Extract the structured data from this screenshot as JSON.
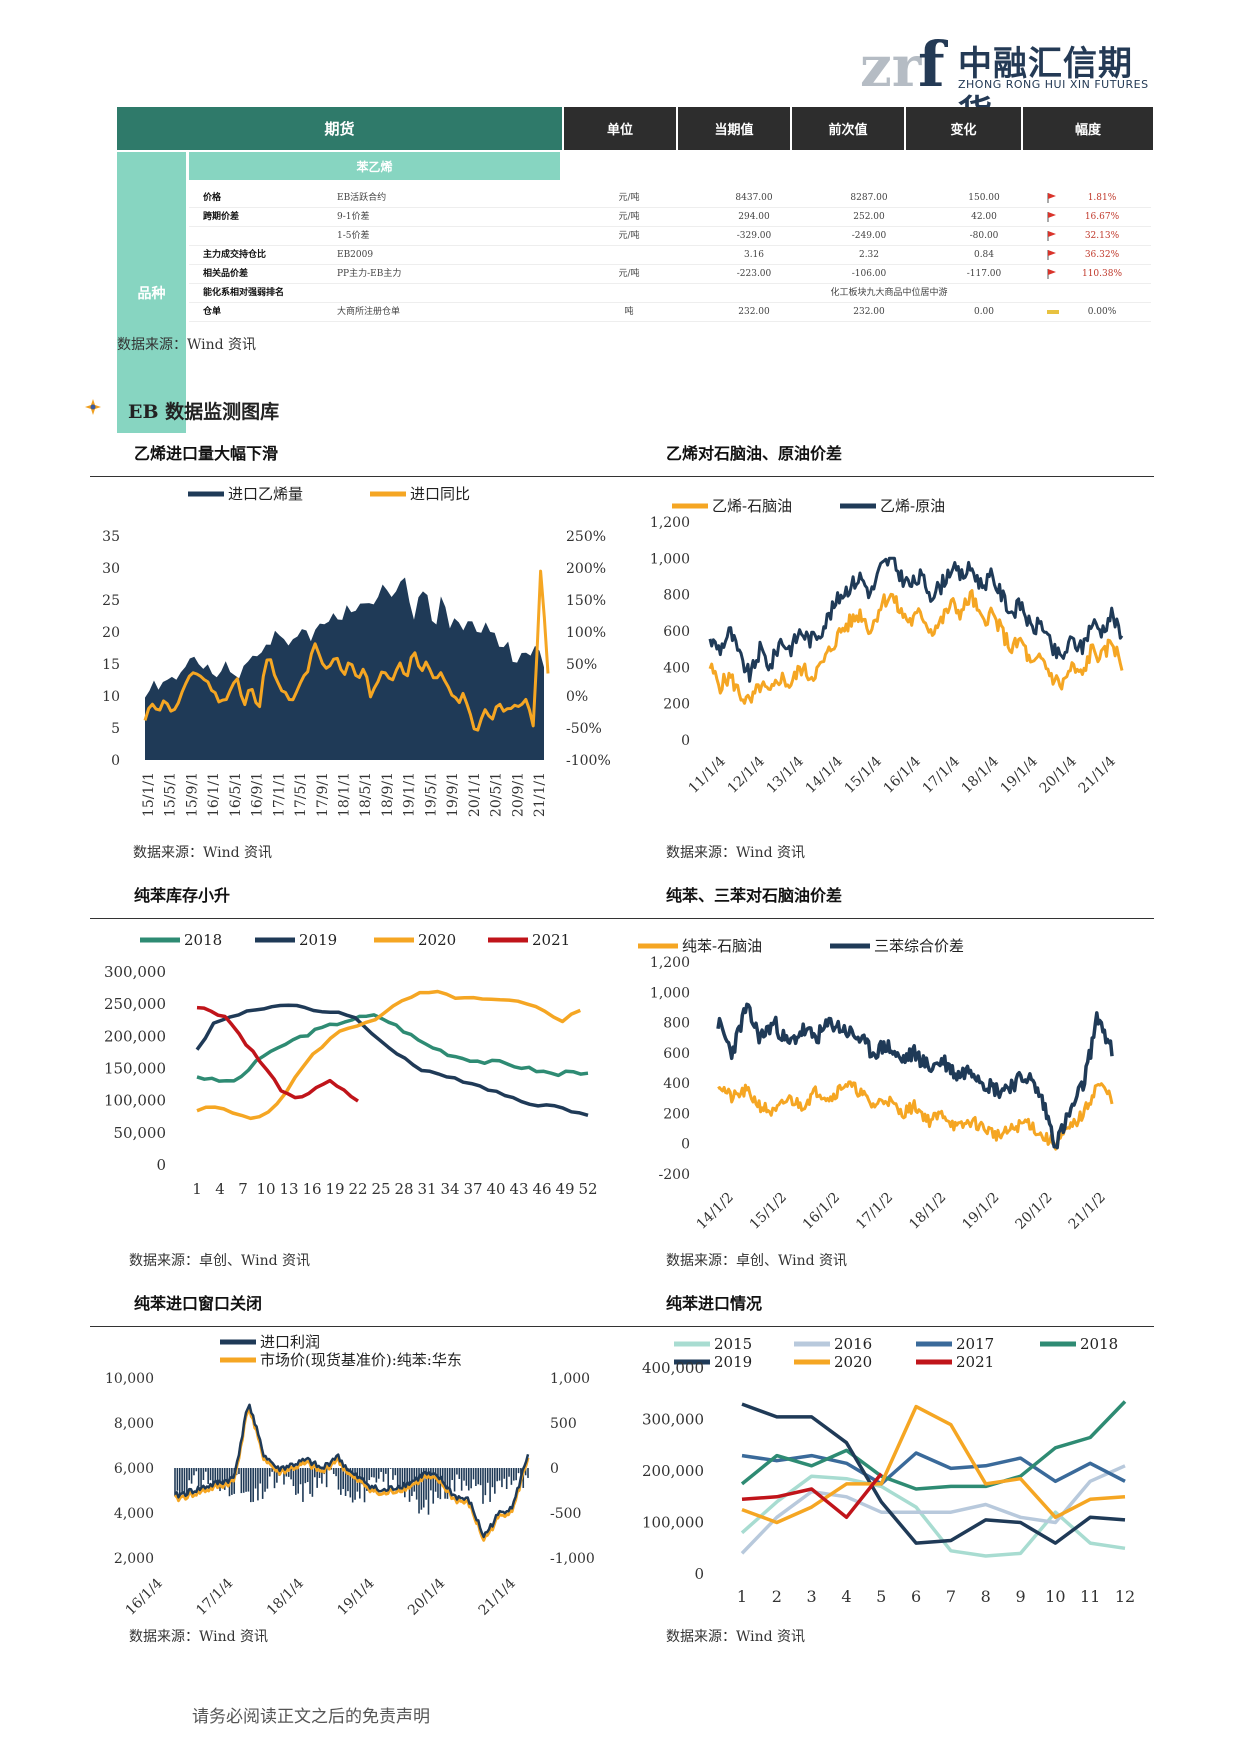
{
  "header": {
    "logo_mark": "zrf",
    "company_cn": "中融汇信期货",
    "company_en": "ZHONG RONG HUI XIN FUTURES"
  },
  "table": {
    "headers": {
      "futures": "期货",
      "unit": "单位",
      "current": "当期值",
      "previous": "前次值",
      "change": "变化",
      "pct": "幅度"
    },
    "side_label": "品种",
    "sub_label": "苯乙烯",
    "rows": [
      {
        "name": "价格",
        "item": "EB活跃合约",
        "unit": "元/吨",
        "current": "8437.00",
        "previous": "8287.00",
        "change": "150.00",
        "pct": "1.81%",
        "flag": "red"
      },
      {
        "name": "跨期价差",
        "item": "9-1价差",
        "unit": "元/吨",
        "current": "294.00",
        "previous": "252.00",
        "change": "42.00",
        "pct": "16.67%",
        "flag": "red"
      },
      {
        "name": "",
        "item": "1-5价差",
        "unit": "元/吨",
        "current": "-329.00",
        "previous": "-249.00",
        "change": "-80.00",
        "pct": "32.13%",
        "flag": "red"
      },
      {
        "name": "主力成交持仓比",
        "item": "EB2009",
        "unit": "",
        "current": "3.16",
        "previous": "2.32",
        "change": "0.84",
        "pct": "36.32%",
        "flag": "red"
      },
      {
        "name": "相关品价差",
        "item": "PP主力-EB主力",
        "unit": "元/吨",
        "current": "-223.00",
        "previous": "-106.00",
        "change": "-117.00",
        "pct": "110.38%",
        "flag": "red"
      },
      {
        "name": "能化系相对强弱排名",
        "item": "",
        "unit": "",
        "note": "化工板块九大商品中位居中游"
      },
      {
        "name": "仓单",
        "item": "大商所注册仓单",
        "unit": "吨",
        "current": "232.00",
        "previous": "232.00",
        "change": "0.00",
        "pct": "0.00%",
        "flag": "yellow"
      }
    ],
    "source": "数据来源：Wind 资讯"
  },
  "section": {
    "title": "EB 数据监测图库"
  },
  "charts": {
    "c1": {
      "title": "乙烯进口量大幅下滑",
      "source": "数据来源：Wind 资讯",
      "legend": [
        "进口乙烯量",
        "进口同比"
      ]
    },
    "c2": {
      "title": "乙烯对石脑油、原油价差",
      "source": "数据来源：Wind 资讯",
      "legend": [
        "乙烯-石脑油",
        "乙烯-原油"
      ]
    },
    "c3": {
      "title": "纯苯库存小升",
      "source": "数据来源：卓创、Wind 资讯",
      "legend": [
        "2018",
        "2019",
        "2020",
        "2021"
      ]
    },
    "c4": {
      "title": "纯苯、三苯对石脑油价差",
      "source": "数据来源：卓创、Wind 资讯",
      "legend": [
        "纯苯-石脑油",
        "三苯综合价差"
      ]
    },
    "c5": {
      "title": "纯苯进口窗口关闭",
      "source": "数据来源：Wind 资讯",
      "legend": [
        "进口利润",
        "市场价(现货基准价):纯苯:华东"
      ]
    },
    "c6": {
      "title": "纯苯进口情况",
      "source": "数据来源：Wind 资讯",
      "legend": [
        "2015",
        "2016",
        "2017",
        "2018",
        "2019",
        "2020",
        "2021"
      ]
    }
  },
  "colors": {
    "navy": "#1f3a57",
    "orange": "#f5a623",
    "teal": "#2e8b73",
    "red": "#c0141a",
    "light_teal": "#a8dcd1",
    "light_blue": "#b8c9dc",
    "mid_blue": "#3a6a9a"
  },
  "chart_data": [
    {
      "type": "area+line",
      "title": "乙烯进口量大幅下滑",
      "x_ticks": [
        "15/1/1",
        "15/5/1",
        "15/9/1",
        "16/1/1",
        "16/5/1",
        "16/9/1",
        "17/1/1",
        "17/5/1",
        "17/9/1",
        "18/1/1",
        "18/5/1",
        "18/9/1",
        "19/1/1",
        "19/5/1",
        "19/9/1",
        "20/1/1",
        "20/5/1",
        "20/9/1",
        "21/1/1"
      ],
      "y_left_ticks": [
        "0",
        "5",
        "10",
        "15",
        "20",
        "25",
        "30",
        "35"
      ],
      "y_right_ticks": [
        "-100%",
        "-50%",
        "0%",
        "50%",
        "100%",
        "150%",
        "200%",
        "250%"
      ],
      "ylim_left": [
        0,
        35
      ],
      "ylim_right": [
        -100,
        250
      ],
      "series": [
        {
          "name": "进口乙烯量",
          "values": [
            10,
            12,
            11,
            13,
            12,
            14,
            15,
            16,
            14,
            15,
            12,
            15,
            14,
            13,
            15,
            16,
            17,
            18,
            20,
            19,
            18,
            20,
            21,
            19,
            22,
            20,
            23,
            22,
            24,
            23,
            25,
            24,
            26,
            27,
            25,
            27,
            28,
            22,
            26,
            25,
            20,
            27,
            21,
            23,
            20,
            22,
            19,
            21,
            20,
            17,
            18,
            15,
            17,
            16,
            18,
            14
          ]
        },
        {
          "name": "进口同比",
          "values": [
            -40,
            -10,
            -20,
            -5,
            -30,
            0,
            20,
            40,
            30,
            20,
            0,
            -10,
            10,
            30,
            -20,
            20,
            -30,
            60,
            50,
            10,
            0,
            -10,
            20,
            40,
            80,
            50,
            40,
            70,
            30,
            60,
            20,
            50,
            -10,
            30,
            40,
            20,
            60,
            20,
            80,
            40,
            50,
            20,
            40,
            10,
            -10,
            0,
            -30,
            -60,
            -20,
            -40,
            -10,
            -30,
            -10,
            -20,
            0,
            -50,
            210,
            40
          ]
        }
      ]
    },
    {
      "type": "line",
      "title": "乙烯对石脑油、原油价差",
      "x_ticks": [
        "11/1/4",
        "12/1/4",
        "13/1/4",
        "14/1/4",
        "15/1/4",
        "16/1/4",
        "17/1/4",
        "18/1/4",
        "19/1/4",
        "20/1/4",
        "21/1/4"
      ],
      "y_ticks": [
        "0",
        "200",
        "400",
        "600",
        "800",
        "1,000",
        "1,200"
      ],
      "ylim": [
        0,
        1200
      ],
      "series": [
        {
          "name": "乙烯-石脑油",
          "values": [
            400,
            300,
            350,
            250,
            200,
            300,
            250,
            350,
            300,
            400,
            350,
            400,
            500,
            600,
            650,
            700,
            600,
            750,
            800,
            700,
            650,
            700,
            600,
            650,
            750,
            700,
            800,
            650,
            700,
            600,
            500,
            550,
            400,
            450,
            350,
            300,
            400,
            350,
            500,
            450,
            550,
            400
          ]
        },
        {
          "name": "乙烯-原油",
          "values": [
            550,
            500,
            600,
            450,
            350,
            500,
            400,
            550,
            500,
            600,
            550,
            600,
            700,
            800,
            850,
            900,
            800,
            950,
            1000,
            900,
            850,
            900,
            800,
            850,
            950,
            900,
            950,
            850,
            900,
            800,
            700,
            750,
            600,
            650,
            500,
            450,
            550,
            500,
            650,
            600,
            700,
            550
          ]
        }
      ]
    },
    {
      "type": "line",
      "title": "纯苯库存小升",
      "x_ticks": [
        "1",
        "4",
        "7",
        "10",
        "13",
        "16",
        "19",
        "22",
        "25",
        "28",
        "31",
        "34",
        "37",
        "40",
        "43",
        "46",
        "49",
        "52"
      ],
      "y_ticks": [
        "0",
        "50,000",
        "100,000",
        "150,000",
        "200,000",
        "250,000",
        "300,000"
      ],
      "ylim": [
        0,
        300000
      ],
      "series": [
        {
          "name": "2018",
          "values": [
            138000,
            132000,
            130000,
            135000,
            165000,
            175000,
            190000,
            200000,
            210000,
            218000,
            225000,
            230000,
            232000,
            220000,
            205000,
            190000,
            180000,
            170000,
            165000,
            160000,
            160000,
            155000,
            150000,
            145000,
            140000,
            148000,
            140000
          ]
        },
        {
          "name": "2019",
          "values": [
            180000,
            220000,
            230000,
            240000,
            245000,
            248000,
            245000,
            240000,
            238000,
            235000,
            210000,
            190000,
            170000,
            150000,
            140000,
            135000,
            130000,
            120000,
            110000,
            100000,
            95000,
            90000,
            85000,
            80000
          ]
        },
        {
          "name": "2020",
          "values": [
            85000,
            90000,
            80000,
            75000,
            80000,
            120000,
            160000,
            190000,
            210000,
            220000,
            230000,
            250000,
            265000,
            268000,
            262000,
            258000,
            256000,
            255000,
            250000,
            240000,
            225000,
            240000
          ]
        },
        {
          "name": "2021",
          "values": [
            245000,
            240000,
            230000,
            200000,
            170000,
            140000,
            110000,
            100000,
            120000,
            130000,
            115000,
            100000
          ]
        }
      ]
    },
    {
      "type": "line",
      "title": "纯苯、三苯对石脑油价差",
      "x_ticks": [
        "14/1/2",
        "15/1/2",
        "16/1/2",
        "17/1/2",
        "18/1/2",
        "19/1/2",
        "20/1/2",
        "21/1/2"
      ],
      "y_ticks": [
        "-200",
        "0",
        "200",
        "400",
        "600",
        "800",
        "1,000",
        "1,200"
      ],
      "ylim": [
        -200,
        1200
      ],
      "series": [
        {
          "name": "纯苯-石脑油",
          "values": [
            400,
            300,
            350,
            250,
            200,
            300,
            250,
            350,
            300,
            400,
            350,
            250,
            300,
            200,
            250,
            150,
            200,
            100,
            150,
            100,
            50,
            100,
            150,
            50,
            0,
            100,
            200,
            400,
            300
          ]
        },
        {
          "name": "三苯综合价差",
          "values": [
            800,
            600,
            900,
            700,
            800,
            650,
            750,
            700,
            800,
            750,
            700,
            600,
            650,
            550,
            600,
            500,
            550,
            450,
            500,
            400,
            350,
            400,
            450,
            300,
            0,
            200,
            400,
            850,
            600
          ]
        }
      ]
    },
    {
      "type": "bar+line",
      "title": "纯苯进口窗口关闭",
      "x_ticks": [
        "16/1/4",
        "17/1/4",
        "18/1/4",
        "19/1/4",
        "20/1/4",
        "21/1/4"
      ],
      "y_left_ticks": [
        "2,000",
        "4,000",
        "6,000",
        "8,000",
        "10,000"
      ],
      "y_right_ticks": [
        "-1,000",
        "-500",
        "0",
        "500",
        "1,000"
      ],
      "ylim_left": [
        2000,
        10000
      ],
      "ylim_right": [
        -1000,
        1000
      ],
      "series": [
        {
          "name": "进口利润",
          "values": [
            -300,
            -200,
            -100,
            -250,
            -150,
            -400,
            -200,
            -100,
            -300,
            -200,
            -100,
            -200,
            -300,
            -200,
            -100,
            -200,
            -500,
            -300,
            -200,
            -100,
            -300,
            -200,
            -100,
            -200
          ]
        },
        {
          "name": "市场价(现货基准价):纯苯:华东",
          "values": [
            4600,
            4800,
            5000,
            5200,
            5400,
            8800,
            6500,
            5800,
            6000,
            6200,
            5800,
            6400,
            5600,
            5200,
            4800,
            5000,
            5200,
            5600,
            5400,
            4600,
            4400,
            2800,
            3800,
            4200,
            6500
          ]
        }
      ]
    },
    {
      "type": "line",
      "title": "纯苯进口情况",
      "x_ticks": [
        "1",
        "2",
        "3",
        "4",
        "5",
        "6",
        "7",
        "8",
        "9",
        "10",
        "11",
        "12"
      ],
      "y_ticks": [
        "0",
        "100,000",
        "200,000",
        "300,000",
        "400,000"
      ],
      "ylim": [
        0,
        400000
      ],
      "series": [
        {
          "name": "2015",
          "values": [
            80000,
            140000,
            190000,
            185000,
            170000,
            130000,
            45000,
            35000,
            40000,
            120000,
            60000,
            50000
          ]
        },
        {
          "name": "2016",
          "values": [
            40000,
            110000,
            160000,
            150000,
            120000,
            120000,
            120000,
            135000,
            110000,
            100000,
            180000,
            210000
          ]
        },
        {
          "name": "2017",
          "values": [
            230000,
            220000,
            230000,
            215000,
            175000,
            235000,
            205000,
            210000,
            225000,
            180000,
            215000,
            180000
          ]
        },
        {
          "name": "2018",
          "values": [
            175000,
            230000,
            210000,
            240000,
            190000,
            165000,
            170000,
            170000,
            190000,
            245000,
            265000,
            335000
          ]
        },
        {
          "name": "2019",
          "values": [
            330000,
            305000,
            305000,
            255000,
            140000,
            60000,
            65000,
            105000,
            100000,
            60000,
            110000,
            105000
          ]
        },
        {
          "name": "2020",
          "values": [
            125000,
            100000,
            130000,
            175000,
            175000,
            325000,
            290000,
            175000,
            185000,
            110000,
            145000,
            150000
          ]
        },
        {
          "name": "2021",
          "values": [
            145000,
            150000,
            165000,
            110000,
            195000
          ]
        }
      ]
    }
  ],
  "footer": {
    "disclaimer": "请务必阅读正文之后的免责声明"
  }
}
